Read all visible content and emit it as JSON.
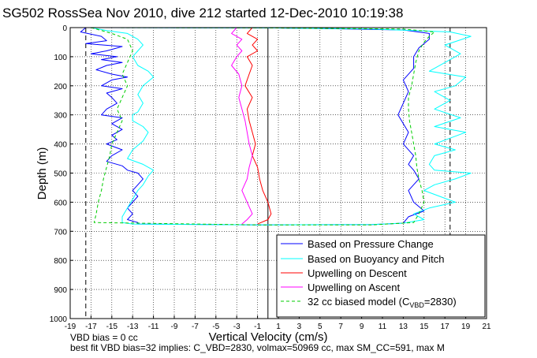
{
  "chart_data": {
    "type": "line",
    "title": "SG502 RossSea Nov 2010, dive 212 started 12-Dec-2010 10:19:38",
    "xlabel": "Vertical Velocity (cm/s)",
    "ylabel": "Depth (m)",
    "xlim": [
      -19,
      21
    ],
    "ylim": [
      1000,
      0
    ],
    "y_reversed": true,
    "grid": true,
    "x_ticks": [
      "-19",
      "-17",
      "-15",
      "-13",
      "-11",
      "-9",
      "-7",
      "-5",
      "-3",
      "-1",
      "1",
      "3",
      "5",
      "7",
      "9",
      "11",
      "13",
      "15",
      "17",
      "19",
      "21"
    ],
    "y_ticks": [
      "0",
      "100",
      "200",
      "300",
      "400",
      "500",
      "600",
      "700",
      "800",
      "900",
      "1000"
    ],
    "reference_lines": [
      {
        "x": -17.5,
        "style": "black-dashed"
      },
      {
        "x": 17.5,
        "style": "black-dashed"
      },
      {
        "x": 0,
        "style": "black-solid"
      }
    ],
    "legend_position": "bottom-right",
    "series": [
      {
        "name": "Based on Pressure Change",
        "color": "#0000ff",
        "style": "solid",
        "width": 1,
        "points": [
          [
            -17.5,
            0
          ],
          [
            -18,
            15
          ],
          [
            -16,
            30
          ],
          [
            -15.5,
            45
          ],
          [
            -17.5,
            55
          ],
          [
            -14,
            65
          ],
          [
            -15.5,
            80
          ],
          [
            -17,
            90
          ],
          [
            -14.5,
            100
          ],
          [
            -16,
            110
          ],
          [
            -14,
            120
          ],
          [
            -15.5,
            130
          ],
          [
            -16.5,
            145
          ],
          [
            -15,
            160
          ],
          [
            -13.5,
            170
          ],
          [
            -15,
            180
          ],
          [
            -16,
            200
          ],
          [
            -14,
            210
          ],
          [
            -15.5,
            225
          ],
          [
            -15,
            240
          ],
          [
            -14.5,
            260
          ],
          [
            -15.5,
            280
          ],
          [
            -16,
            300
          ],
          [
            -14,
            310
          ],
          [
            -15,
            330
          ],
          [
            -14,
            350
          ],
          [
            -15,
            370
          ],
          [
            -14.5,
            385
          ],
          [
            -15.5,
            400
          ],
          [
            -14,
            420
          ],
          [
            -15,
            440
          ],
          [
            -15.5,
            460
          ],
          [
            -14,
            475
          ],
          [
            -13.5,
            490
          ],
          [
            -12.5,
            500
          ],
          [
            -12,
            520
          ],
          [
            -12.5,
            540
          ],
          [
            -13,
            560
          ],
          [
            -12.5,
            580
          ],
          [
            -13,
            600
          ],
          [
            -13.5,
            620
          ],
          [
            -13,
            640
          ],
          [
            -13.5,
            660
          ],
          [
            -12.5,
            670
          ],
          [
            -12.5,
            675
          ],
          [
            -1,
            678
          ],
          [
            10,
            677
          ],
          [
            13,
            672
          ],
          [
            13.5,
            650
          ],
          [
            15,
            630
          ],
          [
            14,
            600
          ],
          [
            13.5,
            560
          ],
          [
            14.5,
            520
          ],
          [
            14,
            490
          ],
          [
            13.5,
            470
          ],
          [
            14,
            440
          ],
          [
            13,
            400
          ],
          [
            13.5,
            360
          ],
          [
            13,
            330
          ],
          [
            12.5,
            300
          ],
          [
            13,
            260
          ],
          [
            13.5,
            220
          ],
          [
            13,
            180
          ],
          [
            14,
            140
          ],
          [
            14,
            100
          ],
          [
            14.5,
            70
          ],
          [
            15.5,
            40
          ],
          [
            15.5,
            20
          ],
          [
            13,
            8
          ],
          [
            5,
            3
          ],
          [
            0,
            1
          ],
          [
            -17.5,
            0
          ]
        ]
      },
      {
        "name": "Based on Buoyancy and Pitch",
        "color": "#00ffff",
        "style": "solid",
        "width": 1,
        "points": [
          [
            -17,
            0
          ],
          [
            -15.5,
            10
          ],
          [
            -13.5,
            20
          ],
          [
            -12.5,
            40
          ],
          [
            -12,
            60
          ],
          [
            -12.5,
            80
          ],
          [
            -13,
            100
          ],
          [
            -12.5,
            130
          ],
          [
            -11.5,
            150
          ],
          [
            -11,
            170
          ],
          [
            -12,
            200
          ],
          [
            -12.5,
            230
          ],
          [
            -12,
            260
          ],
          [
            -12.5,
            290
          ],
          [
            -13,
            300
          ],
          [
            -13,
            320
          ],
          [
            -12,
            340
          ],
          [
            -11.5,
            360
          ],
          [
            -12,
            390
          ],
          [
            -13,
            420
          ],
          [
            -13.5,
            450
          ],
          [
            -12,
            470
          ],
          [
            -11,
            490
          ],
          [
            -11.5,
            510
          ],
          [
            -12,
            540
          ],
          [
            -12.5,
            560
          ],
          [
            -13,
            590
          ],
          [
            -13.5,
            620
          ],
          [
            -14,
            650
          ],
          [
            -14,
            670
          ],
          [
            -13,
            675
          ],
          [
            -1,
            678
          ],
          [
            10,
            677
          ],
          [
            13,
            672
          ],
          [
            15,
            660
          ],
          [
            14,
            640
          ],
          [
            15.5,
            620
          ],
          [
            18,
            600
          ],
          [
            16.5,
            580
          ],
          [
            15,
            560
          ],
          [
            16,
            540
          ],
          [
            18,
            520
          ],
          [
            19.5,
            500
          ],
          [
            16,
            490
          ],
          [
            15.5,
            470
          ],
          [
            16,
            440
          ],
          [
            18,
            420
          ],
          [
            16,
            400
          ],
          [
            17.5,
            380
          ],
          [
            19,
            360
          ],
          [
            16,
            340
          ],
          [
            18.5,
            310
          ],
          [
            16,
            280
          ],
          [
            17.5,
            250
          ],
          [
            16,
            220
          ],
          [
            18,
            200
          ],
          [
            19,
            170
          ],
          [
            15.5,
            150
          ],
          [
            17,
            120
          ],
          [
            18.5,
            90
          ],
          [
            17,
            60
          ],
          [
            19.5,
            30
          ],
          [
            17.5,
            15
          ],
          [
            10,
            5
          ],
          [
            0,
            1
          ],
          [
            -17,
            0
          ]
        ]
      },
      {
        "name": "Upwelling on Descent",
        "color": "#ff0000",
        "style": "solid",
        "width": 1,
        "points": [
          [
            -1.5,
            0
          ],
          [
            -2,
            20
          ],
          [
            -1,
            40
          ],
          [
            -1.5,
            60
          ],
          [
            -1,
            80
          ],
          [
            -2,
            100
          ],
          [
            -1.5,
            130
          ],
          [
            -1.8,
            160
          ],
          [
            -2.2,
            200
          ],
          [
            -1.5,
            240
          ],
          [
            -2,
            280
          ],
          [
            -1.8,
            320
          ],
          [
            -1.5,
            360
          ],
          [
            -1.2,
            400
          ],
          [
            -1.5,
            440
          ],
          [
            -1,
            480
          ],
          [
            -0.8,
            520
          ],
          [
            -0.5,
            560
          ],
          [
            0,
            600
          ],
          [
            0.3,
            640
          ],
          [
            0,
            660
          ],
          [
            -1,
            675
          ]
        ]
      },
      {
        "name": "Upwelling on Ascent",
        "color": "#ff00ff",
        "style": "solid",
        "width": 1,
        "points": [
          [
            -3,
            0
          ],
          [
            -3.5,
            20
          ],
          [
            -2.5,
            40
          ],
          [
            -3,
            60
          ],
          [
            -2.5,
            80
          ],
          [
            -3,
            100
          ],
          [
            -3.5,
            130
          ],
          [
            -2.8,
            160
          ],
          [
            -2.5,
            200
          ],
          [
            -2.8,
            240
          ],
          [
            -2.5,
            280
          ],
          [
            -2.2,
            320
          ],
          [
            -2,
            360
          ],
          [
            -1.8,
            400
          ],
          [
            -1.5,
            440
          ],
          [
            -1.8,
            480
          ],
          [
            -2,
            520
          ],
          [
            -2.5,
            560
          ],
          [
            -2,
            600
          ],
          [
            -1.5,
            640
          ],
          [
            -2,
            660
          ],
          [
            -2.5,
            675
          ]
        ]
      },
      {
        "name": "32 cc biased model (C_VBD=2830)",
        "color": "#00cc00",
        "style": "dashed",
        "width": 1,
        "points": [
          [
            -17,
            0
          ],
          [
            -15,
            20
          ],
          [
            -13.5,
            40
          ],
          [
            -13,
            80
          ],
          [
            -13.5,
            120
          ],
          [
            -14,
            160
          ],
          [
            -13.5,
            200
          ],
          [
            -14,
            240
          ],
          [
            -14.5,
            280
          ],
          [
            -14,
            320
          ],
          [
            -14.5,
            360
          ],
          [
            -15,
            400
          ],
          [
            -15.2,
            440
          ],
          [
            -15.5,
            480
          ],
          [
            -15.8,
            520
          ],
          [
            -16,
            560
          ],
          [
            -16.3,
            600
          ],
          [
            -16.5,
            640
          ],
          [
            -16.7,
            670
          ],
          [
            -1,
            678
          ],
          [
            10,
            678
          ],
          [
            14,
            670
          ],
          [
            14.5,
            640
          ],
          [
            15,
            600
          ],
          [
            14.8,
            560
          ],
          [
            14.5,
            520
          ],
          [
            14.3,
            480
          ],
          [
            14.2,
            440
          ],
          [
            14,
            400
          ],
          [
            13.8,
            360
          ],
          [
            13.6,
            320
          ],
          [
            13.5,
            280
          ],
          [
            13.5,
            240
          ],
          [
            13.8,
            200
          ],
          [
            14,
            160
          ],
          [
            14.2,
            120
          ],
          [
            14.5,
            80
          ],
          [
            15,
            50
          ],
          [
            15.5,
            30
          ],
          [
            16,
            15
          ],
          [
            13,
            5
          ],
          [
            0,
            1
          ],
          [
            -17,
            0
          ]
        ]
      }
    ]
  },
  "legend": {
    "items": [
      {
        "label": "Based on Pressure Change"
      },
      {
        "label": "Based on Buoyancy and Pitch"
      },
      {
        "label": "Upwelling on Descent"
      },
      {
        "label": "Upwelling on Ascent"
      },
      {
        "label_main": "32 cc biased model (C",
        "label_sub": "VBD",
        "label_tail": "=2830)"
      }
    ]
  },
  "footer": {
    "line1": "VBD bias = 0 cc",
    "line2": "best fit VBD bias=32 implies: C_VBD=2830, volmax=50969 cc, max SM_CC=591, max M"
  }
}
